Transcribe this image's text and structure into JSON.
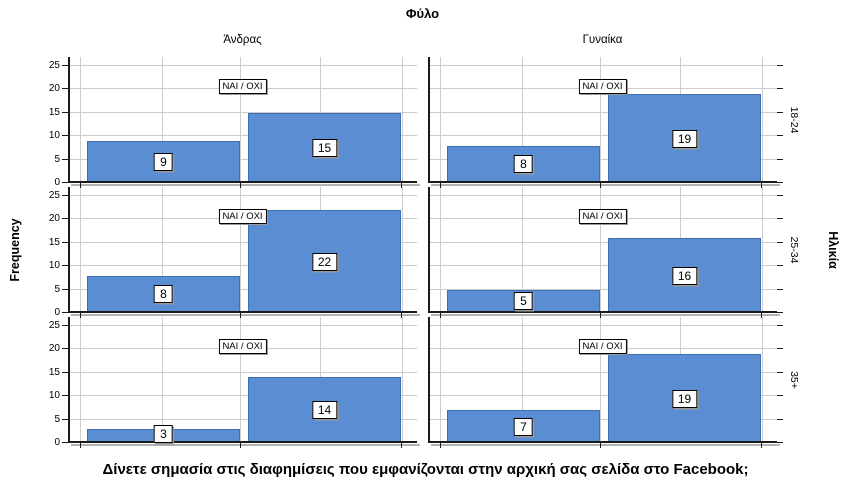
{
  "colors": {
    "bar_fill": "#5B8DD3",
    "bar_border": "#3D6FB3",
    "gridline": "#CCCCCC",
    "axis": "#1A1A1A"
  },
  "chart_data": {
    "type": "bar",
    "title": "Φύλο",
    "caption": "Δίνετε σημασία στις διαφημίσεις που εμφανίζονται στην αρχική σας σελίδα στο Facebook;",
    "ylabel": "Frequency",
    "right_axis_label": "Ηλικία",
    "legend_label": "ΝΑΙ / ΟΧΙ",
    "facet_columns": [
      "Άνδρας",
      "Γυναίκα"
    ],
    "facet_rows": [
      "18-24",
      "25-34",
      "35+"
    ],
    "ylim": [
      0,
      25
    ],
    "yticks": [
      0,
      5,
      10,
      15,
      20,
      25
    ],
    "grid": true,
    "panels": [
      {
        "column": "Άνδρας",
        "row": "18-24",
        "values": [
          9,
          15
        ]
      },
      {
        "column": "Γυναίκα",
        "row": "18-24",
        "values": [
          8,
          19
        ]
      },
      {
        "column": "Άνδρας",
        "row": "25-34",
        "values": [
          8,
          22
        ]
      },
      {
        "column": "Γυναίκα",
        "row": "25-34",
        "values": [
          5,
          16
        ]
      },
      {
        "column": "Άνδρας",
        "row": "35+",
        "values": [
          3,
          14
        ]
      },
      {
        "column": "Γυναίκα",
        "row": "35+",
        "values": [
          7,
          19
        ]
      }
    ]
  }
}
